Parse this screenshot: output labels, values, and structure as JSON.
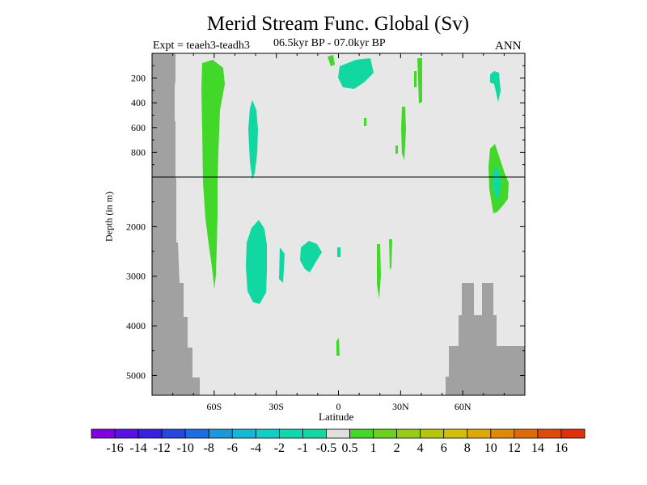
{
  "title": "Merid Stream Func. Global (Sv)",
  "subtitle_left": "Expt = teaeh3-teadh3",
  "subtitle_center": "06.5kyr BP - 07.0kyr BP",
  "subtitle_right": "ANN",
  "chart_data": {
    "type": "contour",
    "xlabel": "Latitude",
    "ylabel": "Depth (in m)",
    "xlim": [
      -90,
      90
    ],
    "x_ticks": [
      {
        "value": -60,
        "label": "60S"
      },
      {
        "value": -30,
        "label": "30S"
      },
      {
        "value": 0,
        "label": "0"
      },
      {
        "value": 30,
        "label": "30N"
      },
      {
        "value": 60,
        "label": "60N"
      }
    ],
    "y_ticks_upper": [
      {
        "value": 200,
        "label": "200"
      },
      {
        "value": 400,
        "label": "400"
      },
      {
        "value": 600,
        "label": "600"
      },
      {
        "value": 800,
        "label": "800"
      }
    ],
    "y_ticks_lower": [
      {
        "value": 2000,
        "label": "2000"
      },
      {
        "value": 3000,
        "label": "3000"
      },
      {
        "value": 4000,
        "label": "4000"
      },
      {
        "value": 5000,
        "label": "5000"
      }
    ],
    "upper_depth_range": [
      0,
      1000
    ],
    "lower_depth_range": [
      1000,
      5400
    ],
    "colorbar": {
      "labels": [
        "-16",
        "-14",
        "-12",
        "-10",
        "-8",
        "-6",
        "-4",
        "-2",
        "-1",
        "-0.5",
        "0.5",
        "1",
        "2",
        "4",
        "6",
        "8",
        "10",
        "12",
        "14",
        "16"
      ],
      "colors": [
        "#8000e0",
        "#5a10e6",
        "#3820e0",
        "#2448e0",
        "#1a6fe6",
        "#1a98dc",
        "#12b8d8",
        "#10cec8",
        "#0ed8b0",
        "#10d8a0",
        "#e0e0e0",
        "#42d82a",
        "#6ad21e",
        "#98cc10",
        "#b6c60a",
        "#d2c004",
        "#e0a804",
        "#e08a04",
        "#e06a06",
        "#e04a08",
        "#e03008"
      ]
    },
    "regions": [
      {
        "level": "0.5 to 1",
        "color": "#42d82a",
        "lat_range": [
          -66,
          -60
        ],
        "depth_range": [
          30,
          3200
        ]
      },
      {
        "level": "-1 to -0.5",
        "color": "#10d8a0",
        "lat_range": [
          -42,
          -34
        ],
        "depth_range": [
          2000,
          3500
        ]
      },
      {
        "level": "-1 to -0.5",
        "color": "#10d8a0",
        "lat_range": [
          -43,
          -40
        ],
        "depth_range": [
          300,
          1000
        ]
      },
      {
        "level": "-1 to -0.5",
        "color": "#10d8a0",
        "lat_range": [
          0,
          16
        ],
        "depth_range": [
          20,
          200
        ]
      },
      {
        "level": "-1 to -0.5",
        "color": "#10d8a0",
        "lat_range": [
          -18,
          -12
        ],
        "depth_range": [
          2400,
          2700
        ]
      },
      {
        "level": "0.5 to 1",
        "color": "#42d82a",
        "lat_range": [
          16,
          20
        ],
        "depth_range": [
          2300,
          3300
        ]
      },
      {
        "level": "0.5 to 1",
        "color": "#42d82a",
        "lat_range": [
          70,
          82
        ],
        "depth_range": [
          750,
          1500
        ]
      },
      {
        "level": "-1 to -0.5",
        "color": "#10d8a0",
        "lat_range": [
          72,
          77
        ],
        "depth_range": [
          100,
          300
        ]
      }
    ]
  }
}
